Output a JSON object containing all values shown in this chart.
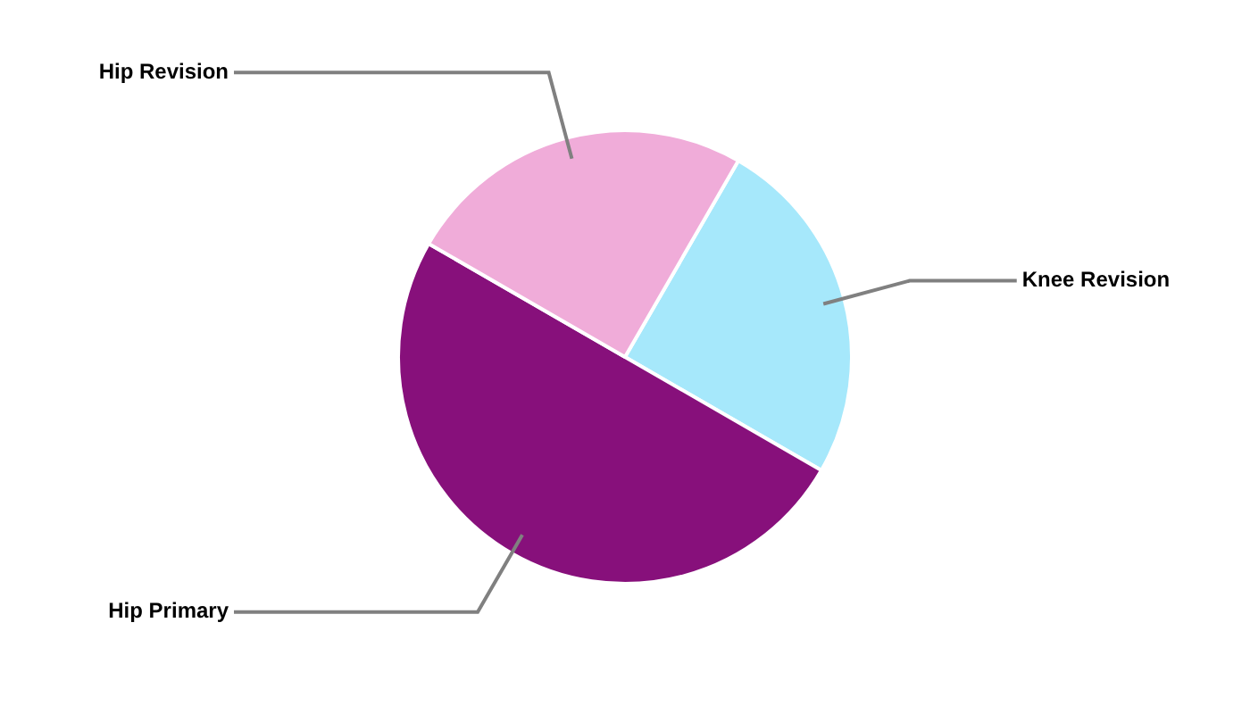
{
  "chart_data": {
    "type": "pie",
    "categories": [
      "Knee Revision",
      "Hip Primary",
      "Hip Revision"
    ],
    "values": [
      25,
      50,
      25
    ],
    "colors": [
      "#a6e8fb",
      "#87107b",
      "#f0acd9"
    ],
    "legend": false
  }
}
